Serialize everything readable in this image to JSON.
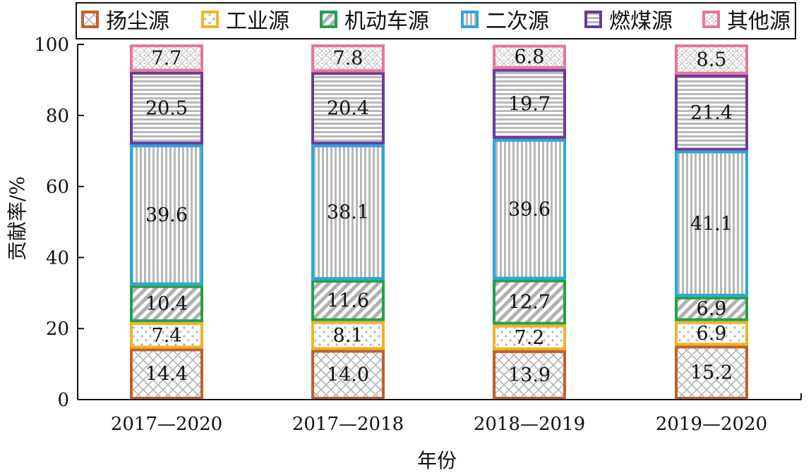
{
  "chart_data": {
    "type": "bar",
    "stacked": true,
    "categories": [
      "2017—2020",
      "2017—2018",
      "2018—2019",
      "2019—2020"
    ],
    "series": [
      {
        "name": "扬尘源",
        "color": "#c0612b",
        "pattern": "crosshatch",
        "values": [
          14.4,
          14.0,
          13.9,
          15.2
        ]
      },
      {
        "name": "工业源",
        "color": "#f2b325",
        "pattern": "dots",
        "values": [
          7.4,
          8.1,
          7.2,
          6.9
        ]
      },
      {
        "name": "机动车源",
        "color": "#22a24a",
        "pattern": "diagonal",
        "values": [
          10.4,
          11.6,
          12.7,
          6.9
        ]
      },
      {
        "name": "二次源",
        "color": "#2aa7dc",
        "pattern": "vertical",
        "values": [
          39.6,
          38.1,
          39.6,
          41.1
        ]
      },
      {
        "name": "燃煤源",
        "color": "#6a3b97",
        "pattern": "horizontal",
        "values": [
          20.5,
          20.4,
          19.7,
          21.4
        ]
      },
      {
        "name": "其他源",
        "color": "#e8769c",
        "pattern": "checker",
        "values": [
          7.7,
          7.8,
          6.8,
          8.5
        ]
      }
    ],
    "xlabel": "年份",
    "ylabel": "贡献率/%",
    "ylim": [
      0,
      100
    ],
    "yticks": [
      0,
      20,
      40,
      60,
      80,
      100
    ],
    "grid": false,
    "legend": "top"
  }
}
